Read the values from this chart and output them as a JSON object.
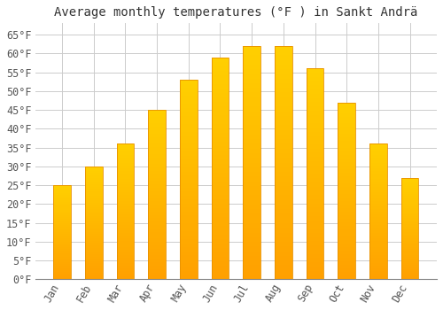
{
  "months": [
    "Jan",
    "Feb",
    "Mar",
    "Apr",
    "May",
    "Jun",
    "Jul",
    "Aug",
    "Sep",
    "Oct",
    "Nov",
    "Dec"
  ],
  "values": [
    25,
    30,
    36,
    45,
    53,
    59,
    62,
    62,
    56,
    47,
    36,
    27
  ],
  "bar_color_top": "#FFD000",
  "bar_color_bottom": "#FFA000",
  "bar_edge_color": "#E89000",
  "title": "Average monthly temperatures (°F ) in Sankt Andrä",
  "ylim": [
    0,
    68
  ],
  "yticks": [
    0,
    5,
    10,
    15,
    20,
    25,
    30,
    35,
    40,
    45,
    50,
    55,
    60,
    65
  ],
  "ytick_labels": [
    "0°F",
    "5°F",
    "10°F",
    "15°F",
    "20°F",
    "25°F",
    "30°F",
    "35°F",
    "40°F",
    "45°F",
    "50°F",
    "55°F",
    "60°F",
    "65°F"
  ],
  "background_color": "#ffffff",
  "grid_color": "#cccccc",
  "title_fontsize": 10,
  "tick_fontsize": 8.5,
  "bar_width": 0.55
}
